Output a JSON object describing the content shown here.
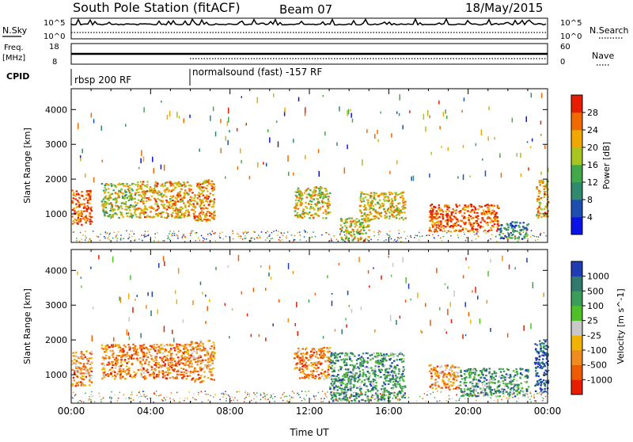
{
  "header": {
    "station": "South Pole Station (fitACF)",
    "beam": "Beam 07",
    "date": "18/May/2015"
  },
  "top_panels": {
    "nsky_label": "N.Sky",
    "nsearch_label": "N.Search",
    "freq_label_1": "Freq.",
    "freq_label_2": "[MHz]",
    "nave_label": "Nave",
    "cpid_label": "CPID",
    "noise_ticks": [
      "10^5",
      "10^0"
    ],
    "freq_ticks": [
      "18",
      "8"
    ],
    "nave_ticks": [
      "60",
      "0"
    ],
    "cpid_segments": [
      {
        "label": "rbsp 200 RF",
        "start_h": 0.0,
        "end_h": 6.0
      },
      {
        "label": "normalsound (fast) -157 RF",
        "start_h": 6.0,
        "end_h": 24.0
      }
    ]
  },
  "chart_data": [
    {
      "type": "heatmap",
      "title": "Power",
      "xlabel": "",
      "ylabel": "Slant Range [km]",
      "xlim": [
        0,
        24
      ],
      "ylim": [
        180,
        4600
      ],
      "yticks": [
        1000,
        2000,
        3000,
        4000
      ],
      "colorbar": {
        "label": "Power [dB]",
        "ticks": [
          "4",
          "8",
          "12",
          "16",
          "20",
          "24",
          "28"
        ],
        "range": [
          0,
          32
        ],
        "colors": [
          "#0a12e6",
          "#1e4fb0",
          "#2f8a6e",
          "#42a84a",
          "#a8c41e",
          "#f0a800",
          "#f06a00",
          "#e81c00"
        ]
      },
      "echo_regions": [
        {
          "t0": 0.0,
          "t1": 1.0,
          "r0": 700,
          "r1": 1700,
          "level": 0.85
        },
        {
          "t0": 1.5,
          "t1": 3.3,
          "r0": 900,
          "r1": 1900,
          "level": 0.55
        },
        {
          "t0": 3.3,
          "t1": 6.0,
          "r0": 900,
          "r1": 1950,
          "level": 0.7
        },
        {
          "t0": 6.0,
          "t1": 7.2,
          "r0": 800,
          "r1": 2000,
          "level": 0.75
        },
        {
          "t0": 11.2,
          "t1": 13.0,
          "r0": 900,
          "r1": 1800,
          "level": 0.6
        },
        {
          "t0": 13.5,
          "t1": 15.0,
          "r0": 250,
          "r1": 900,
          "level": 0.6
        },
        {
          "t0": 14.5,
          "t1": 16.8,
          "r0": 850,
          "r1": 1650,
          "level": 0.65
        },
        {
          "t0": 18.0,
          "t1": 21.5,
          "r0": 500,
          "r1": 1300,
          "level": 0.85
        },
        {
          "t0": 21.5,
          "t1": 23.0,
          "r0": 300,
          "r1": 800,
          "level": 0.3
        },
        {
          "t0": 23.4,
          "t1": 24.0,
          "r0": 900,
          "r1": 2000,
          "level": 0.7
        }
      ]
    },
    {
      "type": "heatmap",
      "title": "Velocity",
      "xlabel": "Time UT",
      "ylabel": "Slant Range [km]",
      "xlim": [
        0,
        24
      ],
      "ylim": [
        180,
        4600
      ],
      "xticks": [
        "00:00",
        "04:00",
        "08:00",
        "12:00",
        "16:00",
        "20:00",
        "00:00"
      ],
      "yticks": [
        1000,
        2000,
        3000,
        4000
      ],
      "colorbar": {
        "label": "Velocity [m s^-1]",
        "ticks": [
          "1000",
          "500",
          "100",
          "25",
          "-25",
          "-100",
          "-500",
          "-1000"
        ],
        "range": [
          -1000,
          1000
        ],
        "colors": [
          "#e81c00",
          "#f05a00",
          "#f08c1e",
          "#f0b400",
          "#c8c8c8",
          "#50c028",
          "#3c9c5a",
          "#2f7a6a",
          "#1e3cb4"
        ]
      },
      "echo_regions": [
        {
          "t0": 0.0,
          "t1": 1.0,
          "r0": 700,
          "r1": 1700,
          "level": 0.3
        },
        {
          "t0": 1.5,
          "t1": 6.0,
          "r0": 900,
          "r1": 1900,
          "level": 0.25
        },
        {
          "t0": 6.0,
          "t1": 7.2,
          "r0": 800,
          "r1": 2000,
          "level": 0.3
        },
        {
          "t0": 11.2,
          "t1": 13.0,
          "r0": 900,
          "r1": 1800,
          "level": 0.25
        },
        {
          "t0": 13.0,
          "t1": 16.8,
          "r0": 250,
          "r1": 1650,
          "level": 0.72
        },
        {
          "t0": 18.0,
          "t1": 19.5,
          "r0": 600,
          "r1": 1300,
          "level": 0.3
        },
        {
          "t0": 19.5,
          "t1": 23.0,
          "r0": 400,
          "r1": 1200,
          "level": 0.72
        },
        {
          "t0": 23.3,
          "t1": 24.0,
          "r0": 500,
          "r1": 2000,
          "level": 0.95
        }
      ]
    }
  ]
}
